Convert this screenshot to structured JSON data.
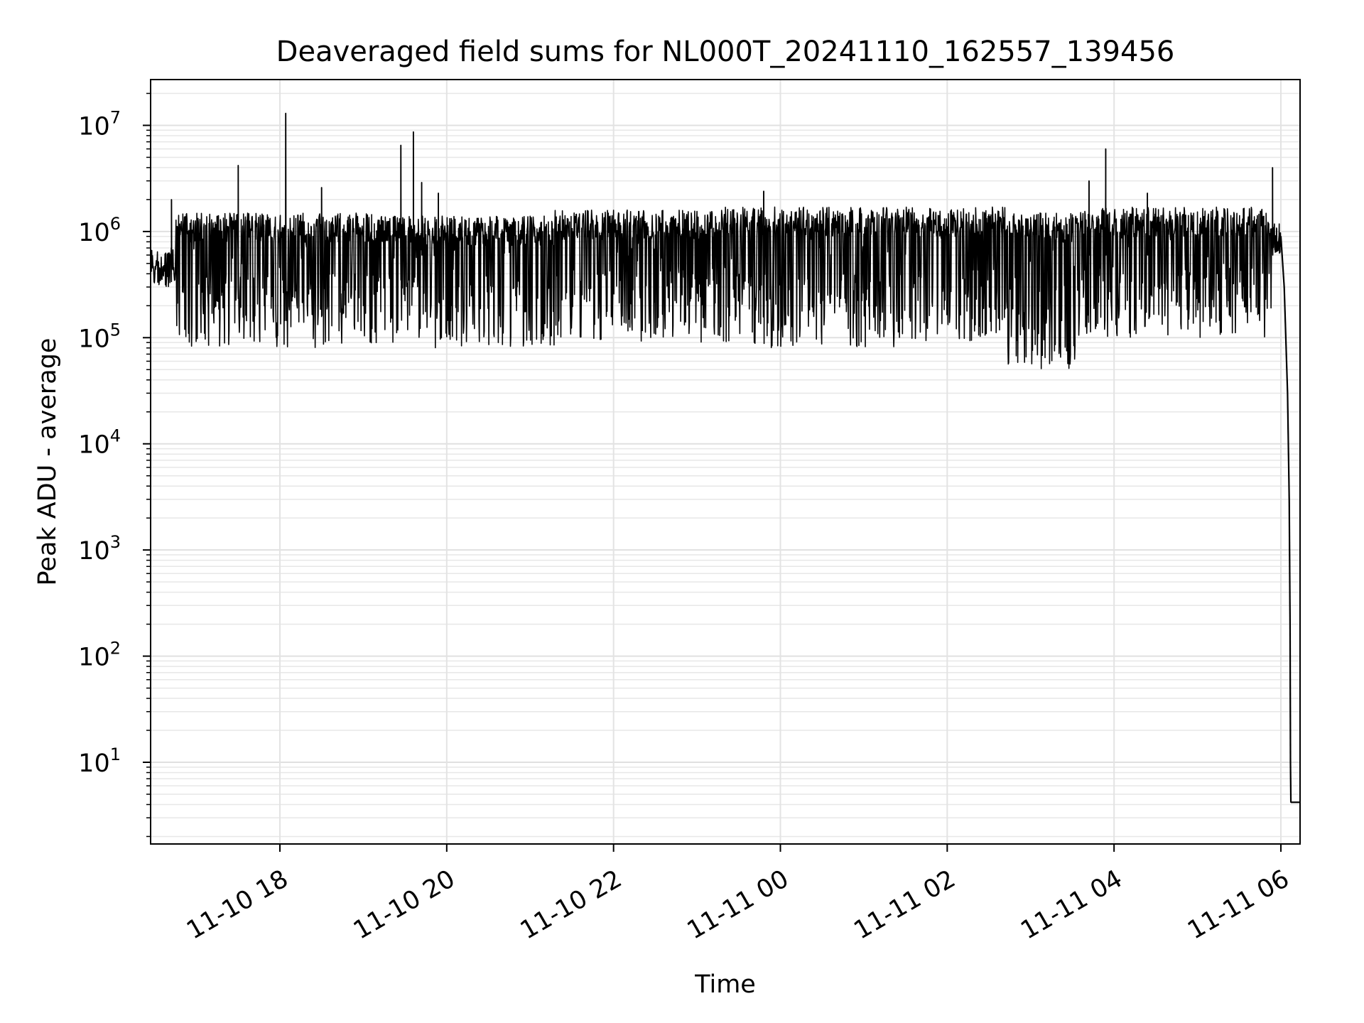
{
  "chart_data": {
    "type": "line",
    "title": "Deaveraged field sums for NL000T_20241110_162557_139456",
    "xlabel": "Time",
    "ylabel": "Peak ADU - average",
    "y_scale": "log",
    "ylim": [
      1.7,
      27000000
    ],
    "xlim_hours": [
      16.45,
      30.23
    ],
    "grid": true,
    "x_ticks": [
      {
        "label": "11-10 18",
        "hours": 18
      },
      {
        "label": "11-10 20",
        "hours": 20
      },
      {
        "label": "11-10 22",
        "hours": 22
      },
      {
        "label": "11-11 00",
        "hours": 24
      },
      {
        "label": "11-11 02",
        "hours": 26
      },
      {
        "label": "11-11 04",
        "hours": 28
      },
      {
        "label": "11-11 06",
        "hours": 30
      }
    ],
    "y_ticks": [
      {
        "base": "10",
        "exp": "1",
        "value": 10
      },
      {
        "base": "10",
        "exp": "2",
        "value": 100
      },
      {
        "base": "10",
        "exp": "3",
        "value": 1000
      },
      {
        "base": "10",
        "exp": "4",
        "value": 10000
      },
      {
        "base": "10",
        "exp": "5",
        "value": 100000
      },
      {
        "base": "10",
        "exp": "6",
        "value": 1000000
      },
      {
        "base": "10",
        "exp": "7",
        "value": 10000000
      }
    ],
    "series": [
      {
        "name": "Deaveraged field sums",
        "color": "#000000",
        "segments": [
          {
            "start_h": 16.45,
            "end_h": 16.75,
            "high": 700000,
            "low": 300000
          },
          {
            "start_h": 16.75,
            "end_h": 19.4,
            "high": 1500000,
            "low": 80000
          },
          {
            "start_h": 19.4,
            "end_h": 21.3,
            "high": 1400000,
            "low": 80000
          },
          {
            "start_h": 21.3,
            "end_h": 23.3,
            "high": 1600000,
            "low": 90000
          },
          {
            "start_h": 23.3,
            "end_h": 25.6,
            "high": 1700000,
            "low": 80000
          },
          {
            "start_h": 25.6,
            "end_h": 26.7,
            "high": 1700000,
            "low": 90000
          },
          {
            "start_h": 26.7,
            "end_h": 27.6,
            "high": 1500000,
            "low": 50000
          },
          {
            "start_h": 27.6,
            "end_h": 29.9,
            "high": 1700000,
            "low": 100000
          },
          {
            "start_h": 29.9,
            "end_h": 30.0,
            "high": 1200000,
            "low": 600000
          }
        ],
        "spikes": [
          {
            "hours": 16.7,
            "value": 2000000
          },
          {
            "hours": 17.5,
            "value": 4200000
          },
          {
            "hours": 18.07,
            "value": 13000000
          },
          {
            "hours": 18.5,
            "value": 2600000
          },
          {
            "hours": 19.45,
            "value": 6500000
          },
          {
            "hours": 19.6,
            "value": 8700000
          },
          {
            "hours": 19.7,
            "value": 2900000
          },
          {
            "hours": 19.9,
            "value": 2300000
          },
          {
            "hours": 23.8,
            "value": 2400000
          },
          {
            "hours": 27.7,
            "value": 3000000
          },
          {
            "hours": 27.9,
            "value": 6000000
          },
          {
            "hours": 28.4,
            "value": 2300000
          },
          {
            "hours": 29.9,
            "value": 4000000
          }
        ],
        "decay": [
          {
            "hours": 30.0,
            "value": 900000
          },
          {
            "hours": 30.04,
            "value": 300000
          },
          {
            "hours": 30.08,
            "value": 30000
          },
          {
            "hours": 30.1,
            "value": 3000
          },
          {
            "hours": 30.11,
            "value": 200
          },
          {
            "hours": 30.115,
            "value": 10
          },
          {
            "hours": 30.12,
            "value": 4.2
          },
          {
            "hours": 30.23,
            "value": 4.2
          }
        ]
      }
    ]
  }
}
